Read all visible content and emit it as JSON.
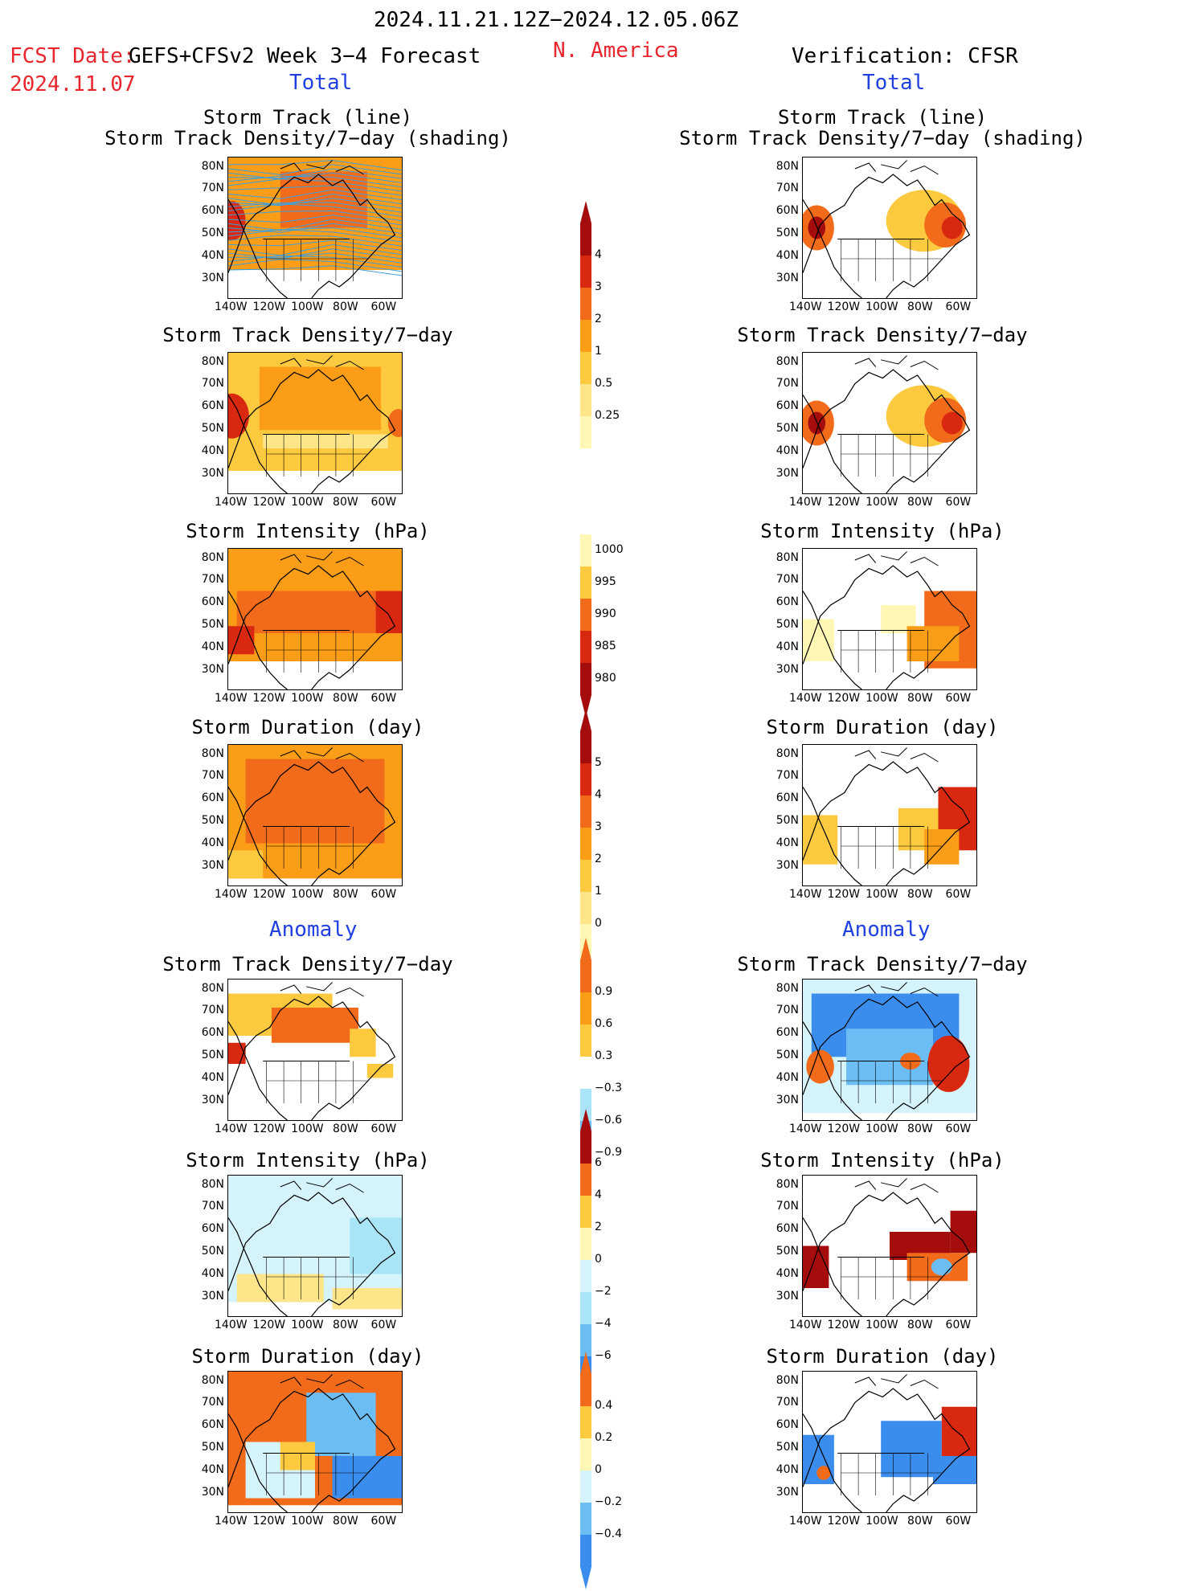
{
  "header": {
    "date_range": "2024.11.21.12Z−2024.12.05.06Z",
    "fcst_date_label": "FCST Date:",
    "forecast_source": "GEFS+CFSv2 Week 3−4 Forecast",
    "fcst_date": "2024.11.07",
    "region": "N. America",
    "verification": "Verification: CFSR"
  },
  "sections": {
    "total_label": "Total",
    "anomaly_label": "Anomaly"
  },
  "panel_titles": {
    "storm_track_line": "Storm Track (line)",
    "storm_track_density_shading": "Storm Track Density/7−day (shading)",
    "storm_track_density": "Storm Track Density/7−day",
    "storm_intensity": "Storm Intensity (hPa)",
    "storm_duration": "Storm Duration (day)"
  },
  "axis": {
    "lat_labels": [
      "80N",
      "70N",
      "60N",
      "50N",
      "40N",
      "30N"
    ],
    "lon_labels": [
      "140W",
      "120W",
      "100W",
      "80W",
      "60W"
    ]
  },
  "colorbars": {
    "density_total": [
      "4",
      "3",
      "2",
      "1",
      "0.5",
      "0.25"
    ],
    "intensity_total": [
      "1000",
      "995",
      "990",
      "985",
      "980"
    ],
    "duration_total": [
      "5",
      "4",
      "3",
      "2",
      "1",
      "0"
    ],
    "density_anomaly": [
      "0.9",
      "0.6",
      "0.3",
      "−0.3",
      "−0.6",
      "−0.9"
    ],
    "intensity_anomaly": [
      "6",
      "4",
      "2",
      "0",
      "−2",
      "−4",
      "−6"
    ],
    "duration_anomaly": [
      "0.4",
      "0.2",
      "0",
      "−0.2",
      "−0.4"
    ]
  },
  "colors": {
    "header_red": "#e8262d",
    "section_blue": "#2040e0",
    "warm_scale": [
      "#fff7b3",
      "#fde68a",
      "#fcc93f",
      "#fb9d16",
      "#f26b1a",
      "#d8280f",
      "#a50c0c"
    ],
    "cool_scale": [
      "#d4f3fb",
      "#a9e5f7",
      "#6cbdf3",
      "#3a8ded",
      "#1f5fd8"
    ],
    "track_line": "#3aa0e0"
  }
}
